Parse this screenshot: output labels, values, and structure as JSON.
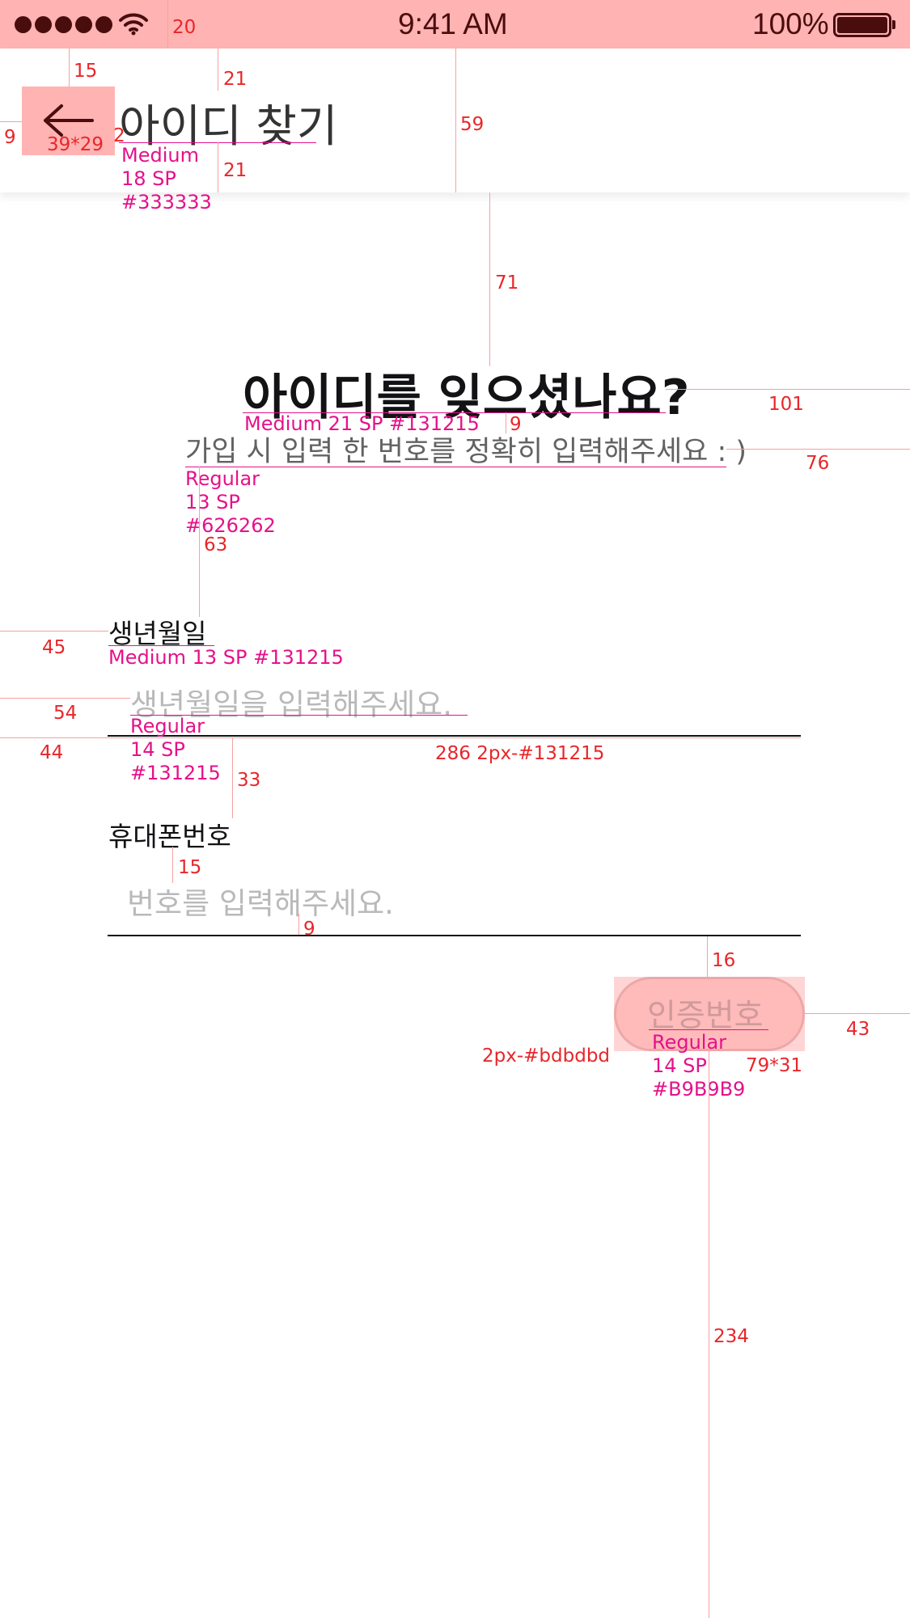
{
  "status_bar": {
    "time": "9:41 AM",
    "battery": "100%"
  },
  "header": {
    "title": "아이디 찾기",
    "back_icon": "arrow-left-icon"
  },
  "main": {
    "heading": "아이디를 잊으셨나요?",
    "subheading": "가입 시 입력 한 번호를 정확히 입력해주세요 : )",
    "fields": [
      {
        "label": "생년월일",
        "placeholder": "생년월일을 입력해주세요."
      },
      {
        "label": "휴대폰번호",
        "placeholder": "번호를 입력해주세요."
      }
    ],
    "auth_button": "인증번호"
  },
  "annotations": {
    "status_gap": "20",
    "back_top": "15",
    "back_left": "9",
    "back_size": "39*29",
    "back_gap": "2",
    "title_top": "21",
    "title_bottom": "21",
    "header_height": "59",
    "title_spec": [
      "Medium",
      "18 SP",
      "#333333"
    ],
    "gap_71": "71",
    "heading_right": "101",
    "heading_spec": "Medium 21 SP #131215",
    "gap_9a": "9",
    "sub_right": "76",
    "sub_spec": [
      "Regular",
      "13 SP",
      "#626262"
    ],
    "gap_63": "63",
    "label_left": "45",
    "label1_spec": "Medium 13 SP #131215",
    "ph_left": "54",
    "ph_spec": [
      "Regular",
      "14 SP",
      "#131215"
    ],
    "line_left": "44",
    "line_spec": "286 2px-#131215",
    "gap_33": "33",
    "gap_15": "15",
    "gap_9b": "9",
    "gap_16": "16",
    "auth_right": "43",
    "auth_border": "2px-#bdbdbd",
    "auth_spec": [
      "Regular",
      "14 SP",
      "#B9B9B9"
    ],
    "auth_size": "79*31",
    "gap_234": "234"
  },
  "colors": {
    "status_bg": "#ffb3b3",
    "annotation_red": "#e8262a",
    "annotation_magenta": "#e5118a",
    "text_dark": "#131215",
    "text_sub": "#626262",
    "placeholder": "#b9b9b9"
  }
}
